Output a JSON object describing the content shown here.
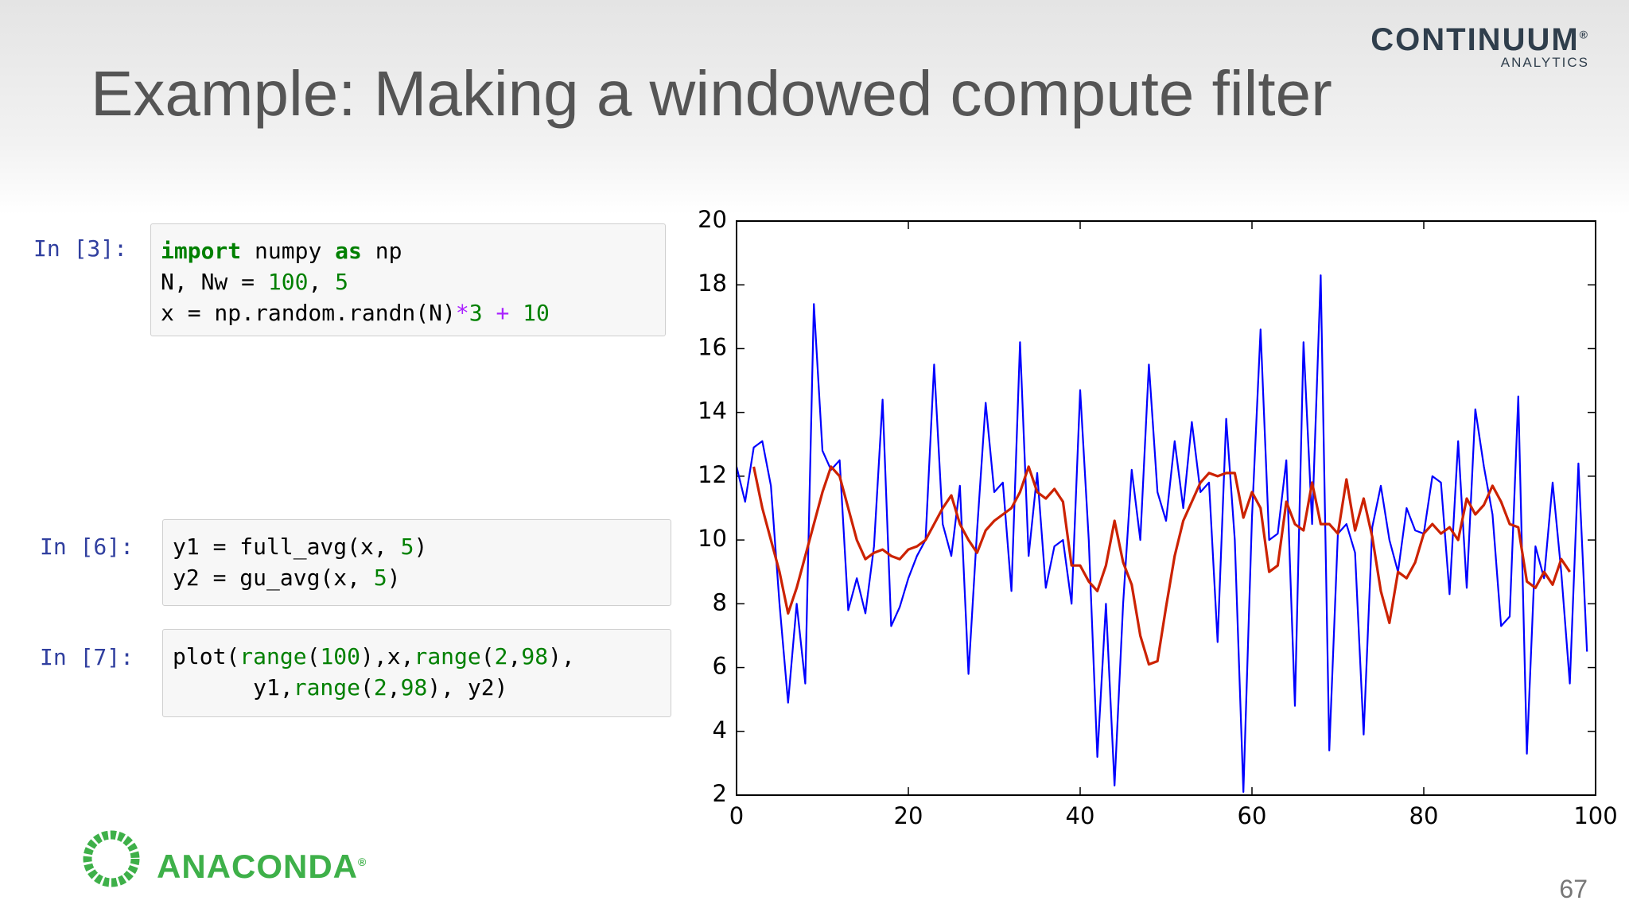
{
  "slide": {
    "title": "Example: Making a windowed compute filter",
    "brand": "CONTINUUM",
    "brand_mark": "®",
    "brand_sub": "ANALYTICS",
    "logo": "ANACONDA",
    "logo_mark": "®",
    "page_number": "67"
  },
  "code_cells": [
    {
      "prompt": "In [3]:",
      "lines": [
        [
          {
            "text": "import",
            "color": "#008000",
            "weight": "bold"
          },
          {
            "text": " numpy ",
            "color": "#000000"
          },
          {
            "text": "as",
            "color": "#008000",
            "weight": "bold"
          },
          {
            "text": " np",
            "color": "#000000"
          }
        ],
        [
          {
            "text": "N, Nw = ",
            "color": "#000000"
          },
          {
            "text": "100",
            "color": "#008000"
          },
          {
            "text": ", ",
            "color": "#000000"
          },
          {
            "text": "5",
            "color": "#008000"
          }
        ],
        [
          {
            "text": "x = np.random.randn(N)",
            "color": "#000000"
          },
          {
            "text": "*",
            "color": "#aa22ff"
          },
          {
            "text": "3",
            "color": "#008000"
          },
          {
            "text": " + ",
            "color": "#aa22ff"
          },
          {
            "text": "10",
            "color": "#008000"
          }
        ]
      ]
    },
    {
      "prompt": "In [6]:",
      "lines": [
        [
          {
            "text": "y1 = full_avg(x, ",
            "color": "#000000"
          },
          {
            "text": "5",
            "color": "#008000"
          },
          {
            "text": ")",
            "color": "#000000"
          }
        ],
        [
          {
            "text": "y2 = gu_avg(x, ",
            "color": "#000000"
          },
          {
            "text": "5",
            "color": "#008000"
          },
          {
            "text": ")",
            "color": "#000000"
          }
        ]
      ]
    },
    {
      "prompt": "In [7]:",
      "lines": [
        [
          {
            "text": "plot(",
            "color": "#000000"
          },
          {
            "text": "range",
            "color": "#008000"
          },
          {
            "text": "(",
            "color": "#000000"
          },
          {
            "text": "100",
            "color": "#008000"
          },
          {
            "text": "),x,",
            "color": "#000000"
          },
          {
            "text": "range",
            "color": "#008000"
          },
          {
            "text": "(",
            "color": "#000000"
          },
          {
            "text": "2",
            "color": "#008000"
          },
          {
            "text": ",",
            "color": "#000000"
          },
          {
            "text": "98",
            "color": "#008000"
          },
          {
            "text": "),",
            "color": "#000000"
          }
        ],
        [
          {
            "text": "      y1,",
            "color": "#000000"
          },
          {
            "text": "range",
            "color": "#008000"
          },
          {
            "text": "(",
            "color": "#000000"
          },
          {
            "text": "2",
            "color": "#008000"
          },
          {
            "text": ",",
            "color": "#000000"
          },
          {
            "text": "98",
            "color": "#008000"
          },
          {
            "text": "), y2)",
            "color": "#000000"
          }
        ]
      ]
    }
  ],
  "chart_data": {
    "type": "line",
    "xlim": [
      0,
      100
    ],
    "xticks": [
      0,
      20,
      40,
      60,
      80,
      100
    ],
    "ylim": [
      2,
      20
    ],
    "yticks": [
      2,
      4,
      6,
      8,
      10,
      12,
      14,
      16,
      18,
      20
    ],
    "series": [
      {
        "color": "#0000ff",
        "x": [
          0,
          1,
          2,
          3,
          4,
          5,
          6,
          7,
          8,
          9,
          10,
          11,
          12,
          13,
          14,
          15,
          16,
          17,
          18,
          19,
          20,
          21,
          22,
          23,
          24,
          25,
          26,
          27,
          28,
          29,
          30,
          31,
          32,
          33,
          34,
          35,
          36,
          37,
          38,
          39,
          40,
          41,
          42,
          43,
          44,
          45,
          46,
          47,
          48,
          49,
          50,
          51,
          52,
          53,
          54,
          55,
          56,
          57,
          58,
          59,
          60,
          61,
          62,
          63,
          64,
          65,
          66,
          67,
          68,
          69,
          70,
          71,
          72,
          73,
          74,
          75,
          76,
          77,
          78,
          79,
          80,
          81,
          82,
          83,
          84,
          85,
          86,
          87,
          88,
          89,
          90,
          91,
          92,
          93,
          94,
          95,
          96,
          97,
          98,
          99
        ],
        "values": [
          12.3,
          11.2,
          12.9,
          13.1,
          11.7,
          8.0,
          4.9,
          8.0,
          5.5,
          17.4,
          12.8,
          12.2,
          12.5,
          7.8,
          8.8,
          7.7,
          9.8,
          14.4,
          7.3,
          7.9,
          8.8,
          9.5,
          10.0,
          15.5,
          10.5,
          9.5,
          11.7,
          5.8,
          10.3,
          14.3,
          11.5,
          11.8,
          8.4,
          16.2,
          9.5,
          12.1,
          8.5,
          9.8,
          10.0,
          8.0,
          14.7,
          10.0,
          3.2,
          8.0,
          2.3,
          8.0,
          12.2,
          10.0,
          15.5,
          11.5,
          10.6,
          13.1,
          11.0,
          13.7,
          11.5,
          11.8,
          6.8,
          13.8,
          10.0,
          2.1,
          10.7,
          16.6,
          10.0,
          10.2,
          12.5,
          4.8,
          16.2,
          10.5,
          18.3,
          3.4,
          10.2,
          10.5,
          9.6,
          3.9,
          10.4,
          11.7,
          10.0,
          9.0,
          11.0,
          10.3,
          10.2,
          12.0,
          11.8,
          8.3,
          13.1,
          8.5,
          14.1,
          12.3,
          10.8,
          7.3,
          7.6,
          14.5,
          3.3,
          9.8,
          8.8,
          11.8,
          9.0,
          5.5,
          12.4,
          6.5
        ]
      },
      {
        "color": "#cc2200",
        "x": [
          2,
          3,
          4,
          5,
          6,
          7,
          8,
          9,
          10,
          11,
          12,
          13,
          14,
          15,
          16,
          17,
          18,
          19,
          20,
          21,
          22,
          23,
          24,
          25,
          26,
          27,
          28,
          29,
          30,
          31,
          32,
          33,
          34,
          35,
          36,
          37,
          38,
          39,
          40,
          41,
          42,
          43,
          44,
          45,
          46,
          47,
          48,
          49,
          50,
          51,
          52,
          53,
          54,
          55,
          56,
          57,
          58,
          59,
          60,
          61,
          62,
          63,
          64,
          65,
          66,
          67,
          68,
          69,
          70,
          71,
          72,
          73,
          74,
          75,
          76,
          77,
          78,
          79,
          80,
          81,
          82,
          83,
          84,
          85,
          86,
          87,
          88,
          89,
          90,
          91,
          92,
          93,
          94,
          95,
          96,
          97
        ],
        "values": [
          12.3,
          11.0,
          10.0,
          9.0,
          7.7,
          8.5,
          9.5,
          10.5,
          11.5,
          12.3,
          12.0,
          11.0,
          10.0,
          9.4,
          9.6,
          9.7,
          9.5,
          9.4,
          9.7,
          9.8,
          10.0,
          10.5,
          11.0,
          11.4,
          10.5,
          10.0,
          9.6,
          10.3,
          10.6,
          10.8,
          11.0,
          11.5,
          12.3,
          11.5,
          11.3,
          11.6,
          11.2,
          9.2,
          9.2,
          8.7,
          8.4,
          9.2,
          10.6,
          9.3,
          8.6,
          7.0,
          6.1,
          6.2,
          7.9,
          9.5,
          10.6,
          11.2,
          11.8,
          12.1,
          12.0,
          12.1,
          12.1,
          10.7,
          11.5,
          11.0,
          9.0,
          9.2,
          11.2,
          10.5,
          10.3,
          11.8,
          10.5,
          10.5,
          10.2,
          11.9,
          10.3,
          11.3,
          10.1,
          8.4,
          7.4,
          9.0,
          8.8,
          9.3,
          10.2,
          10.5,
          10.2,
          10.4,
          10.0,
          11.3,
          10.8,
          11.1,
          11.7,
          11.2,
          10.5,
          10.4,
          8.7,
          8.5,
          9.0,
          8.6,
          9.4,
          9.0
        ]
      }
    ]
  }
}
